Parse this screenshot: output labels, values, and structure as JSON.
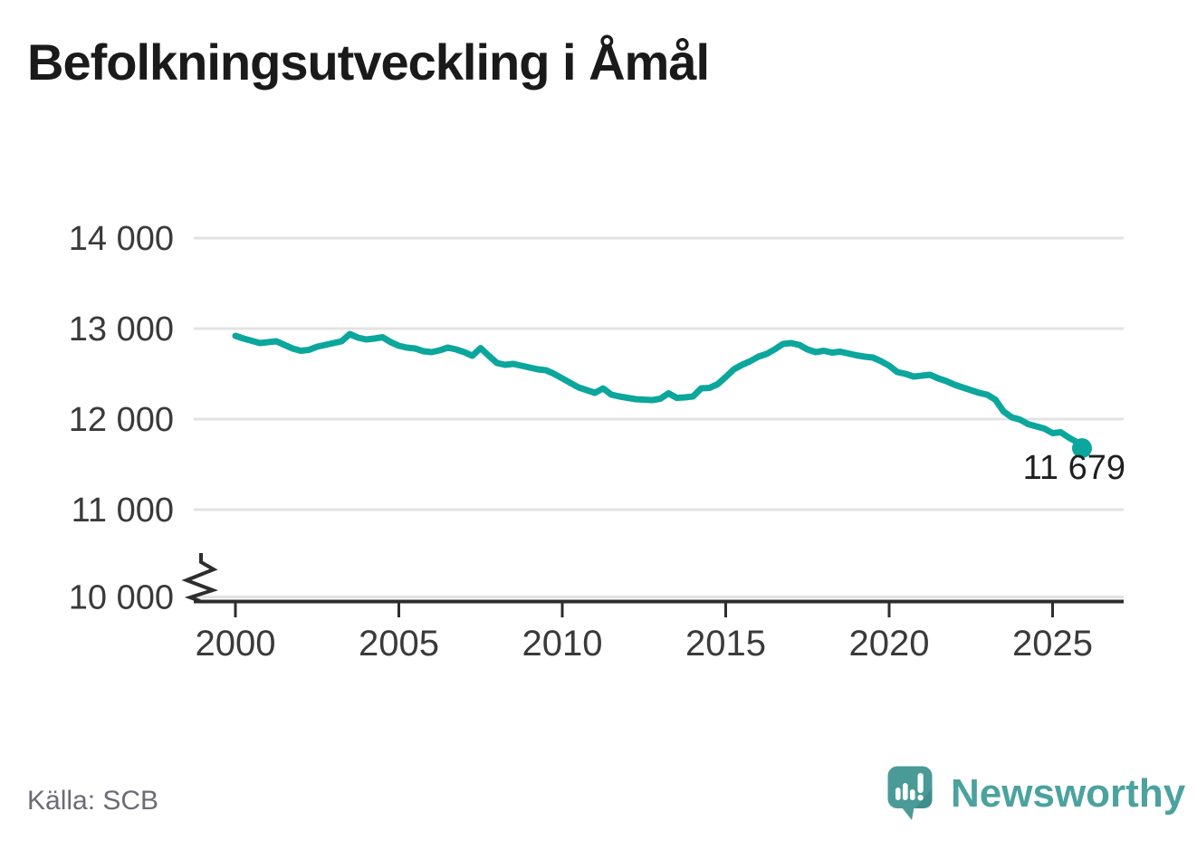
{
  "title": "Befolkningsutveckling i Åmål",
  "source": "Källa: SCB",
  "brand": "Newsworthy",
  "icons": {
    "logo": "speech-bubble-bar-chart-icon",
    "axis_break": "y-axis-break-zigzag"
  },
  "colors": {
    "line": "#0BA79C",
    "grid": "#E3E3E3",
    "axis": "#2D2D2D",
    "tick_label": "#3A3A3A",
    "title_text": "#1A1A1A",
    "end_label": "#1F1F1F",
    "source_text": "#6B6B74",
    "brand_teal": "#4BA29E",
    "logo_bubble": "#4A9B97",
    "logo_shade": "#3F8E8B"
  },
  "chart_data": {
    "type": "line",
    "title": "Befolkningsutveckling i Åmål",
    "xlabel": "",
    "ylabel": "",
    "xlim": [
      1998.7,
      2027.2
    ],
    "ylim": [
      10000,
      14000
    ],
    "y_axis_break": true,
    "grid": "horizontal",
    "legend": "none",
    "y_ticks": [
      {
        "value": 14000,
        "label": "14 000"
      },
      {
        "value": 13000,
        "label": "13 000"
      },
      {
        "value": 12000,
        "label": "12 000"
      },
      {
        "value": 11000,
        "label": "11 000"
      },
      {
        "value": 10000,
        "label": "10 000"
      }
    ],
    "x_ticks": [
      {
        "value": 2000,
        "label": "2000"
      },
      {
        "value": 2005,
        "label": "2005"
      },
      {
        "value": 2010,
        "label": "2010"
      },
      {
        "value": 2015,
        "label": "2015"
      },
      {
        "value": 2020,
        "label": "2020"
      },
      {
        "value": 2025,
        "label": "2025"
      }
    ],
    "end_point": {
      "x": 2025.9,
      "value": 11679,
      "label": "11 679"
    },
    "series": [
      {
        "points": [
          [
            2000.0,
            12920
          ],
          [
            2000.25,
            12890
          ],
          [
            2000.5,
            12865
          ],
          [
            2000.75,
            12840
          ],
          [
            2001.0,
            12850
          ],
          [
            2001.25,
            12860
          ],
          [
            2001.5,
            12820
          ],
          [
            2001.75,
            12780
          ],
          [
            2002.0,
            12755
          ],
          [
            2002.25,
            12765
          ],
          [
            2002.5,
            12800
          ],
          [
            2002.75,
            12820
          ],
          [
            2003.0,
            12840
          ],
          [
            2003.25,
            12860
          ],
          [
            2003.5,
            12940
          ],
          [
            2003.75,
            12900
          ],
          [
            2004.0,
            12880
          ],
          [
            2004.25,
            12890
          ],
          [
            2004.5,
            12905
          ],
          [
            2004.75,
            12850
          ],
          [
            2005.0,
            12810
          ],
          [
            2005.25,
            12790
          ],
          [
            2005.5,
            12780
          ],
          [
            2005.75,
            12750
          ],
          [
            2006.0,
            12740
          ],
          [
            2006.25,
            12760
          ],
          [
            2006.5,
            12790
          ],
          [
            2006.75,
            12770
          ],
          [
            2007.0,
            12740
          ],
          [
            2007.25,
            12700
          ],
          [
            2007.5,
            12785
          ],
          [
            2007.75,
            12700
          ],
          [
            2008.0,
            12620
          ],
          [
            2008.25,
            12600
          ],
          [
            2008.5,
            12610
          ],
          [
            2008.75,
            12590
          ],
          [
            2009.0,
            12570
          ],
          [
            2009.25,
            12550
          ],
          [
            2009.5,
            12540
          ],
          [
            2009.75,
            12500
          ],
          [
            2010.0,
            12450
          ],
          [
            2010.25,
            12400
          ],
          [
            2010.5,
            12350
          ],
          [
            2010.75,
            12320
          ],
          [
            2011.0,
            12290
          ],
          [
            2011.25,
            12340
          ],
          [
            2011.5,
            12270
          ],
          [
            2011.75,
            12250
          ],
          [
            2012.0,
            12235
          ],
          [
            2012.25,
            12220
          ],
          [
            2012.5,
            12215
          ],
          [
            2012.75,
            12210
          ],
          [
            2013.0,
            12225
          ],
          [
            2013.25,
            12285
          ],
          [
            2013.5,
            12235
          ],
          [
            2013.75,
            12240
          ],
          [
            2014.0,
            12250
          ],
          [
            2014.25,
            12340
          ],
          [
            2014.5,
            12345
          ],
          [
            2014.75,
            12385
          ],
          [
            2015.0,
            12465
          ],
          [
            2015.25,
            12550
          ],
          [
            2015.5,
            12600
          ],
          [
            2015.75,
            12640
          ],
          [
            2016.0,
            12690
          ],
          [
            2016.25,
            12720
          ],
          [
            2016.5,
            12770
          ],
          [
            2016.75,
            12830
          ],
          [
            2017.0,
            12840
          ],
          [
            2017.25,
            12820
          ],
          [
            2017.5,
            12770
          ],
          [
            2017.75,
            12740
          ],
          [
            2018.0,
            12755
          ],
          [
            2018.25,
            12735
          ],
          [
            2018.5,
            12745
          ],
          [
            2018.75,
            12725
          ],
          [
            2019.0,
            12705
          ],
          [
            2019.25,
            12690
          ],
          [
            2019.5,
            12680
          ],
          [
            2019.75,
            12640
          ],
          [
            2020.0,
            12590
          ],
          [
            2020.25,
            12520
          ],
          [
            2020.5,
            12500
          ],
          [
            2020.75,
            12470
          ],
          [
            2021.0,
            12480
          ],
          [
            2021.25,
            12490
          ],
          [
            2021.5,
            12450
          ],
          [
            2021.75,
            12420
          ],
          [
            2022.0,
            12380
          ],
          [
            2022.25,
            12350
          ],
          [
            2022.5,
            12320
          ],
          [
            2022.75,
            12290
          ],
          [
            2023.0,
            12270
          ],
          [
            2023.25,
            12215
          ],
          [
            2023.5,
            12085
          ],
          [
            2023.75,
            12020
          ],
          [
            2024.0,
            11995
          ],
          [
            2024.25,
            11945
          ],
          [
            2024.5,
            11920
          ],
          [
            2024.75,
            11895
          ],
          [
            2025.0,
            11845
          ],
          [
            2025.25,
            11855
          ],
          [
            2025.5,
            11795
          ],
          [
            2025.75,
            11745
          ],
          [
            2025.9,
            11679
          ]
        ]
      }
    ]
  }
}
